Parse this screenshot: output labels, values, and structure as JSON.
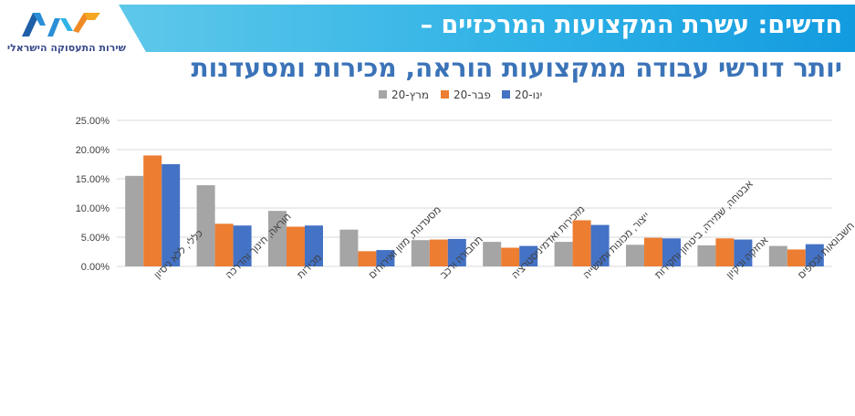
{
  "header": {
    "title_line1": "חדשים: עשרת המקצועות המרכזיים –",
    "title_line2": "יותר דורשי עבודה ממקצועות הוראה, מכירות ומסעדנות",
    "logo_text": "שירות התעסוקה הישראלי"
  },
  "colors": {
    "banner": "#2fb2e6",
    "title_line2": "#3b73b8",
    "mar": "#a5a5a5",
    "feb": "#ed7d31",
    "jan": "#4472c4"
  },
  "chart_data": {
    "type": "bar",
    "categories": [
      "כללי, ללא ניסיון",
      "הוראה, חינוך והדרכה",
      "מכירות",
      "מסעדנות, מזון ואירוחים",
      "תחבורה ורכב",
      "מזכירות ואדמיניסטרציה",
      "ייצור, מכונות ותעשייה",
      "אבטחה, שמירה, ביטחון וחקירות",
      "אחזקה וניקיון",
      "חשבונאות וכספים"
    ],
    "series": [
      {
        "name": "מרץ-20",
        "color": "#a5a5a5",
        "values": [
          15.5,
          13.9,
          9.5,
          6.3,
          4.5,
          4.2,
          4.2,
          3.7,
          3.6,
          3.5
        ]
      },
      {
        "name": "פבר-20",
        "color": "#ed7d31",
        "values": [
          19.0,
          7.3,
          6.8,
          2.6,
          4.6,
          3.2,
          7.9,
          4.9,
          4.8,
          2.9
        ]
      },
      {
        "name": "ינו-20",
        "color": "#4472c4",
        "values": [
          17.5,
          7.0,
          7.0,
          2.8,
          4.7,
          3.5,
          7.1,
          4.8,
          4.6,
          3.8
        ]
      }
    ],
    "ylim": [
      0,
      25
    ],
    "yticks": [
      "0.00%",
      "5.00%",
      "10.00%",
      "15.00%",
      "20.00%",
      "25.00%"
    ],
    "legend_position": "top-center",
    "grid": true
  }
}
